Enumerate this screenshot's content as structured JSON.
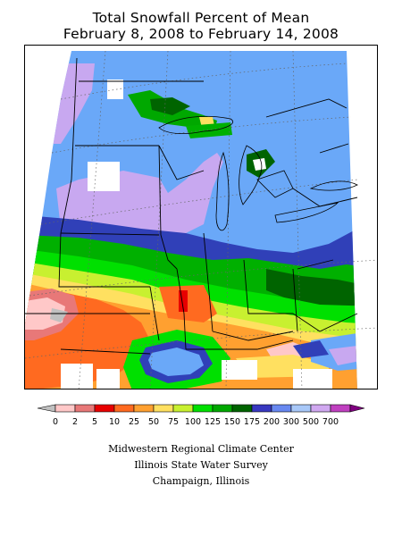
{
  "title_line1": "Total Snowfall Percent of Mean",
  "title_line2": "February 8, 2008 to February 14, 2008",
  "legend": {
    "items": [
      {
        "label": "0",
        "color": "#c0c0c0"
      },
      {
        "label": "2",
        "color": "#ffc8c8"
      },
      {
        "label": "5",
        "color": "#e87878"
      },
      {
        "label": "10",
        "color": "#e80000"
      },
      {
        "label": "25",
        "color": "#ff6a20"
      },
      {
        "label": "50",
        "color": "#ffa030"
      },
      {
        "label": "75",
        "color": "#ffe060"
      },
      {
        "label": "100",
        "color": "#c8f030"
      },
      {
        "label": "125",
        "color": "#00e000"
      },
      {
        "label": "150",
        "color": "#00a800"
      },
      {
        "label": "175",
        "color": "#006400"
      },
      {
        "label": "200",
        "color": "#3838c0"
      },
      {
        "label": "300",
        "color": "#6888f0"
      },
      {
        "label": "500",
        "color": "#a8c8f8"
      },
      {
        "label": "700",
        "color": "#d0a8f0"
      }
    ],
    "end_color": "#c040c0",
    "final_color": "#800080"
  },
  "credits": {
    "line1": "Midwestern Regional Climate Center",
    "line2": "Illinois State Water Survey",
    "line3": "Champaign, Illinois"
  },
  "colors": {
    "blue": "#6aa8f8",
    "light_purple": "#c8a8f0",
    "dark_blue": "#3040b8",
    "dark_green": "#006400",
    "green": "#00b000",
    "light_green": "#00e000",
    "yellow_green": "#c8f030",
    "yellow": "#ffe060",
    "orange": "#ffa030",
    "red_orange": "#ff6a20",
    "pink": "#ffc8c8",
    "salmon": "#e87878",
    "gray": "#c0c0c0"
  }
}
